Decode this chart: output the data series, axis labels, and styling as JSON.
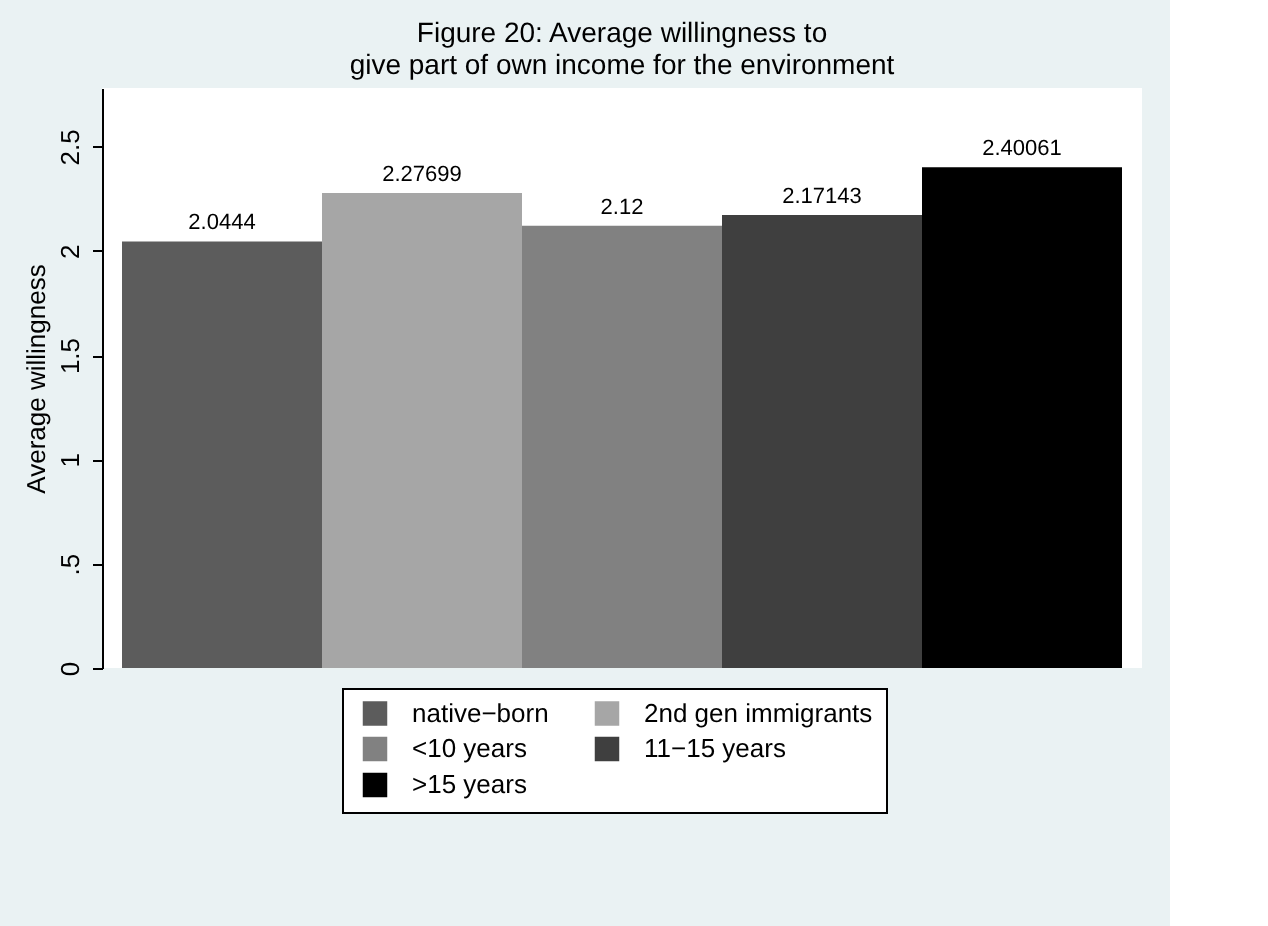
{
  "chart_data": {
    "type": "bar",
    "title": "Figure 20: Average willingness to\ngive part of own income for the environment",
    "ylabel": "Average willingness",
    "categories": [
      null
    ],
    "series": [
      {
        "name": "native−born",
        "color": "#5c5c5c",
        "values": [
          2.0444
        ]
      },
      {
        "name": "2nd gen immigrants",
        "color": "#a6a6a6",
        "values": [
          2.27699
        ]
      },
      {
        "name": "<10 years",
        "color": "#818181",
        "values": [
          2.12
        ]
      },
      {
        "name": "11−15 years",
        "color": "#3f3f3f",
        "values": [
          2.17143
        ]
      },
      {
        "name": ">15 years",
        "color": "#000000",
        "values": [
          2.40061
        ]
      }
    ],
    "ylim": [
      0,
      2.78
    ],
    "yticks": [
      0,
      {
        "value": 0.5,
        "label": ".5"
      },
      1,
      1.5,
      2,
      2.5
    ],
    "grid": false,
    "legend": "bottom",
    "data_labels": true
  }
}
